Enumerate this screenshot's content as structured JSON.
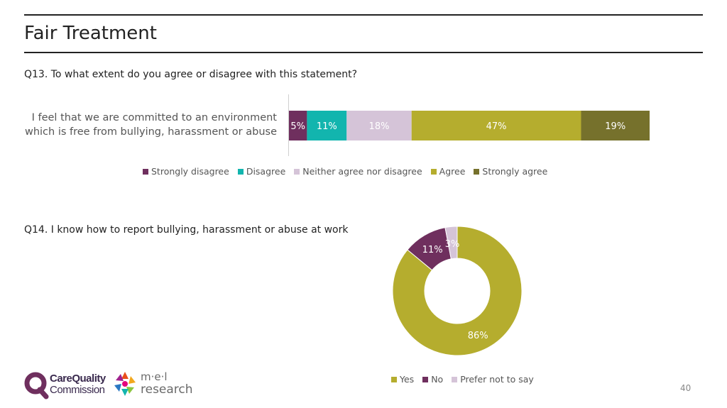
{
  "title": "Fair Treatment",
  "q13": {
    "question": "Q13. To what extent do you agree or disagree with this statement?",
    "statement_line1": "I feel that we are committed to an environment",
    "statement_line2": "which is free from bullying, harassment or abuse"
  },
  "q14": {
    "question": "Q14. I know how to report bullying, harassment or abuse at work"
  },
  "chart_data": [
    {
      "type": "bar",
      "orientation": "horizontal-stacked-100",
      "categories": [
        "I feel that we are committed to an environment which is free from bullying, harassment or abuse"
      ],
      "series": [
        {
          "name": "Strongly disagree",
          "values": [
            5
          ],
          "label": "5%",
          "color": "#6f2f5e"
        },
        {
          "name": "Disagree",
          "values": [
            11
          ],
          "label": "11%",
          "color": "#12b5ae"
        },
        {
          "name": "Neither agree nor disagree",
          "values": [
            18
          ],
          "label": "18%",
          "color": "#d5c4d8"
        },
        {
          "name": "Agree",
          "values": [
            47
          ],
          "label": "47%",
          "color": "#b5ad2e"
        },
        {
          "name": "Strongly agree",
          "values": [
            19
          ],
          "label": "19%",
          "color": "#76712c"
        }
      ],
      "legend_position": "bottom"
    },
    {
      "type": "pie",
      "donut": true,
      "slices": [
        {
          "name": "Yes",
          "value": 86,
          "label": "86%",
          "color": "#b5ad2e"
        },
        {
          "name": "No",
          "value": 11,
          "label": "11%",
          "color": "#6f2f5e"
        },
        {
          "name": "Prefer not to say",
          "value": 3,
          "label": "3%",
          "color": "#d5c4d8"
        }
      ],
      "legend_position": "bottom"
    }
  ],
  "logos": {
    "cqc_line1": "CareQuality",
    "cqc_line2": "Commission",
    "mel_line1": "m·e·l",
    "mel_line2": "research"
  },
  "page_number": "40"
}
